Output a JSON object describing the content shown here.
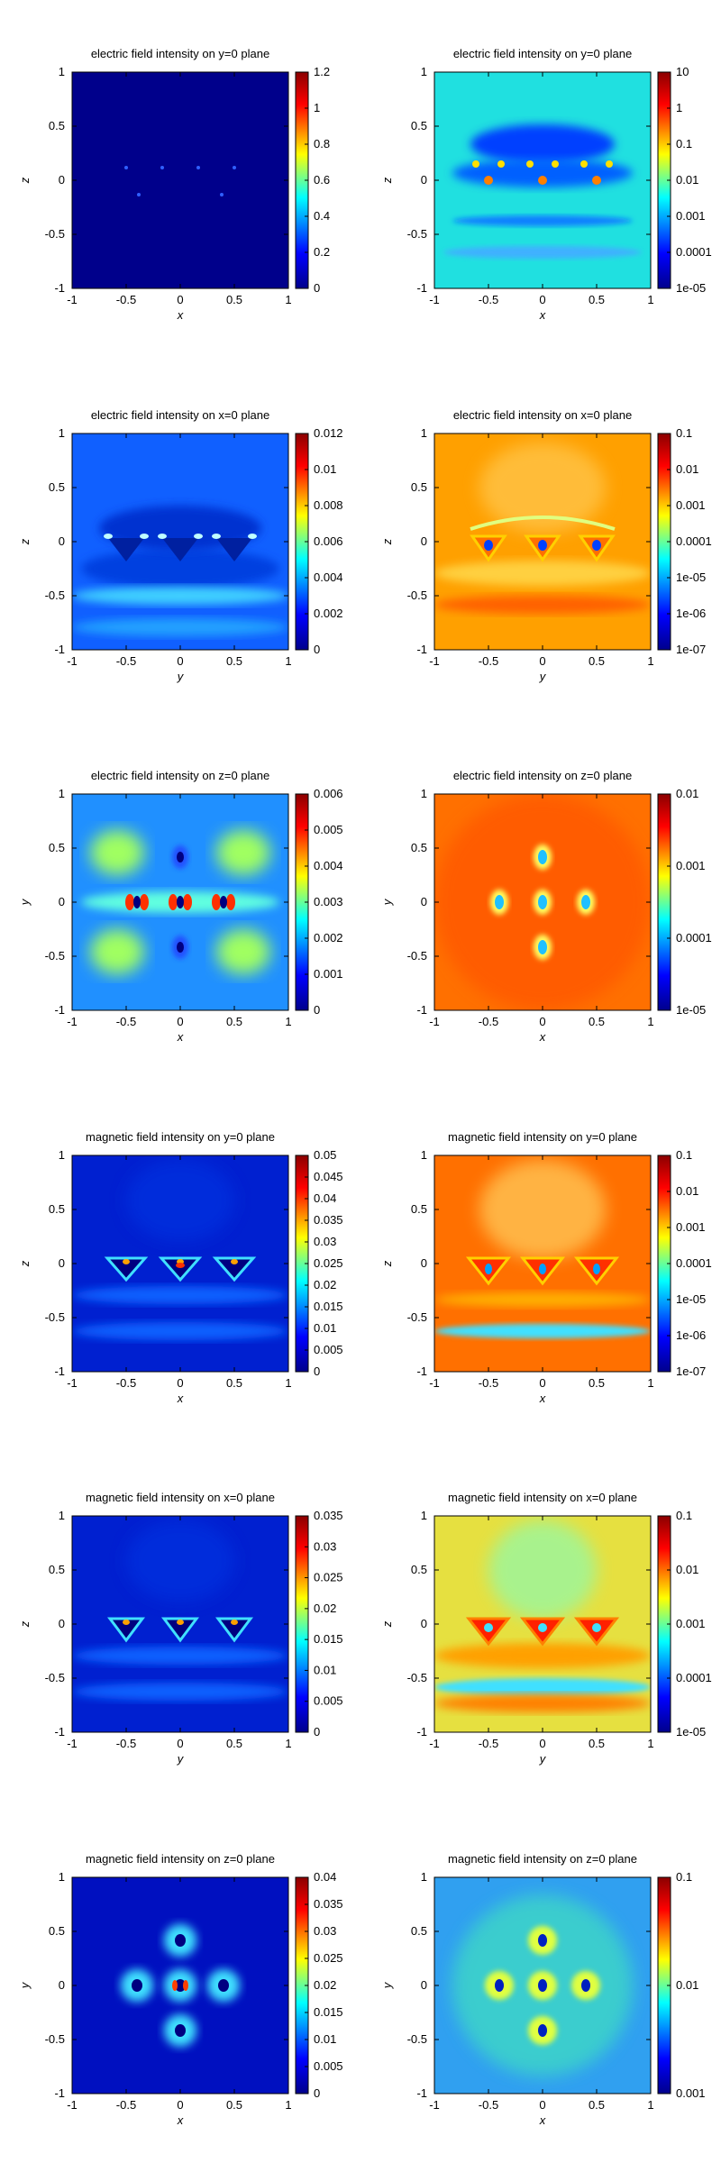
{
  "chart_data": [
    {
      "type": "heatmap",
      "title": "electric field intensity on y=0 plane",
      "xlabel": "x",
      "ylabel": "z",
      "xlim": [
        -1,
        1
      ],
      "ylim": [
        -1,
        1
      ],
      "xticks": [
        "-1",
        "-0.5",
        "0",
        "0.5",
        "1"
      ],
      "yticks": [
        "1",
        "0.5",
        "0",
        "-0.5",
        "-1"
      ],
      "colorbar": {
        "scale": "linear",
        "ticks": [
          "1.2",
          "1",
          "0.8",
          "0.6",
          "0.4",
          "0.2",
          "0"
        ]
      }
    },
    {
      "type": "heatmap",
      "title": "electric field intensity on y=0 plane",
      "xlabel": "x",
      "ylabel": "z",
      "xlim": [
        -1,
        1
      ],
      "ylim": [
        -1,
        1
      ],
      "xticks": [
        "-1",
        "-0.5",
        "0",
        "0.5",
        "1"
      ],
      "yticks": [
        "1",
        "0.5",
        "0",
        "-0.5",
        "-1"
      ],
      "colorbar": {
        "scale": "log",
        "ticks": [
          "10",
          "1",
          "0.1",
          "0.01",
          "0.001",
          "0.0001",
          "1e-05"
        ]
      }
    },
    {
      "type": "heatmap",
      "title": "electric field intensity on x=0 plane",
      "xlabel": "y",
      "ylabel": "z",
      "xlim": [
        -1,
        1
      ],
      "ylim": [
        -1,
        1
      ],
      "xticks": [
        "-1",
        "-0.5",
        "0",
        "0.5",
        "1"
      ],
      "yticks": [
        "1",
        "0.5",
        "0",
        "-0.5",
        "-1"
      ],
      "colorbar": {
        "scale": "linear",
        "ticks": [
          "0.012",
          "0.01",
          "0.008",
          "0.006",
          "0.004",
          "0.002",
          "0"
        ]
      }
    },
    {
      "type": "heatmap",
      "title": "electric field intensity on x=0 plane",
      "xlabel": "y",
      "ylabel": "z",
      "xlim": [
        -1,
        1
      ],
      "ylim": [
        -1,
        1
      ],
      "xticks": [
        "-1",
        "-0.5",
        "0",
        "0.5",
        "1"
      ],
      "yticks": [
        "1",
        "0.5",
        "0",
        "-0.5",
        "-1"
      ],
      "colorbar": {
        "scale": "log",
        "ticks": [
          "0.1",
          "0.01",
          "0.001",
          "0.0001",
          "1e-05",
          "1e-06",
          "1e-07"
        ]
      }
    },
    {
      "type": "heatmap",
      "title": "electric field intensity on z=0 plane",
      "xlabel": "x",
      "ylabel": "y",
      "xlim": [
        -1,
        1
      ],
      "ylim": [
        -1,
        1
      ],
      "xticks": [
        "-1",
        "-0.5",
        "0",
        "0.5",
        "1"
      ],
      "yticks": [
        "1",
        "0.5",
        "0",
        "-0.5",
        "-1"
      ],
      "colorbar": {
        "scale": "linear",
        "ticks": [
          "0.006",
          "0.005",
          "0.004",
          "0.003",
          "0.002",
          "0.001",
          "0"
        ]
      }
    },
    {
      "type": "heatmap",
      "title": "electric field intensity on z=0 plane",
      "xlabel": "x",
      "ylabel": "y",
      "xlim": [
        -1,
        1
      ],
      "ylim": [
        -1,
        1
      ],
      "xticks": [
        "-1",
        "-0.5",
        "0",
        "0.5",
        "1"
      ],
      "yticks": [
        "1",
        "0.5",
        "0",
        "-0.5",
        "-1"
      ],
      "colorbar": {
        "scale": "log",
        "ticks": [
          "0.01",
          "0.001",
          "0.0001",
          "1e-05"
        ]
      }
    },
    {
      "type": "heatmap",
      "title": "magnetic field intensity on y=0 plane",
      "xlabel": "x",
      "ylabel": "z",
      "xlim": [
        -1,
        1
      ],
      "ylim": [
        -1,
        1
      ],
      "xticks": [
        "-1",
        "-0.5",
        "0",
        "0.5",
        "1"
      ],
      "yticks": [
        "1",
        "0.5",
        "0",
        "-0.5",
        "-1"
      ],
      "colorbar": {
        "scale": "linear",
        "ticks": [
          "0.05",
          "0.045",
          "0.04",
          "0.035",
          "0.03",
          "0.025",
          "0.02",
          "0.015",
          "0.01",
          "0.005",
          "0"
        ]
      }
    },
    {
      "type": "heatmap",
      "title": "magnetic field intensity on y=0 plane",
      "xlabel": "x",
      "ylabel": "z",
      "xlim": [
        -1,
        1
      ],
      "ylim": [
        -1,
        1
      ],
      "xticks": [
        "-1",
        "-0.5",
        "0",
        "0.5",
        "1"
      ],
      "yticks": [
        "1",
        "0.5",
        "0",
        "-0.5",
        "-1"
      ],
      "colorbar": {
        "scale": "log",
        "ticks": [
          "0.1",
          "0.01",
          "0.001",
          "0.0001",
          "1e-05",
          "1e-06",
          "1e-07"
        ]
      }
    },
    {
      "type": "heatmap",
      "title": "magnetic field intensity on x=0 plane",
      "xlabel": "y",
      "ylabel": "z",
      "xlim": [
        -1,
        1
      ],
      "ylim": [
        -1,
        1
      ],
      "xticks": [
        "-1",
        "-0.5",
        "0",
        "0.5",
        "1"
      ],
      "yticks": [
        "1",
        "0.5",
        "0",
        "-0.5",
        "-1"
      ],
      "colorbar": {
        "scale": "linear",
        "ticks": [
          "0.035",
          "0.03",
          "0.025",
          "0.02",
          "0.015",
          "0.01",
          "0.005",
          "0"
        ]
      }
    },
    {
      "type": "heatmap",
      "title": "magnetic field intensity on x=0 plane",
      "xlabel": "y",
      "ylabel": "z",
      "xlim": [
        -1,
        1
      ],
      "ylim": [
        -1,
        1
      ],
      "xticks": [
        "-1",
        "-0.5",
        "0",
        "0.5",
        "1"
      ],
      "yticks": [
        "1",
        "0.5",
        "0",
        "-0.5",
        "-1"
      ],
      "colorbar": {
        "scale": "log",
        "ticks": [
          "0.1",
          "0.01",
          "0.001",
          "0.0001",
          "1e-05"
        ]
      }
    },
    {
      "type": "heatmap",
      "title": "magnetic field intensity on z=0 plane",
      "xlabel": "x",
      "ylabel": "y",
      "xlim": [
        -1,
        1
      ],
      "ylim": [
        -1,
        1
      ],
      "xticks": [
        "-1",
        "-0.5",
        "0",
        "0.5",
        "1"
      ],
      "yticks": [
        "1",
        "0.5",
        "0",
        "-0.5",
        "-1"
      ],
      "colorbar": {
        "scale": "linear",
        "ticks": [
          "0.04",
          "0.035",
          "0.03",
          "0.025",
          "0.02",
          "0.015",
          "0.01",
          "0.005",
          "0"
        ]
      }
    },
    {
      "type": "heatmap",
      "title": "magnetic field intensity on z=0 plane",
      "xlabel": "x",
      "ylabel": "y",
      "xlim": [
        -1,
        1
      ],
      "ylim": [
        -1,
        1
      ],
      "xticks": [
        "-1",
        "-0.5",
        "0",
        "0.5",
        "1"
      ],
      "yticks": [
        "1",
        "0.5",
        "0",
        "-0.5",
        "-1"
      ],
      "colorbar": {
        "scale": "log",
        "ticks": [
          "0.1",
          "0.01",
          "0.001"
        ]
      }
    }
  ],
  "colormap": [
    "#00008b",
    "#0000ff",
    "#00ffff",
    "#ffff00",
    "#ff0000",
    "#8b0000"
  ]
}
